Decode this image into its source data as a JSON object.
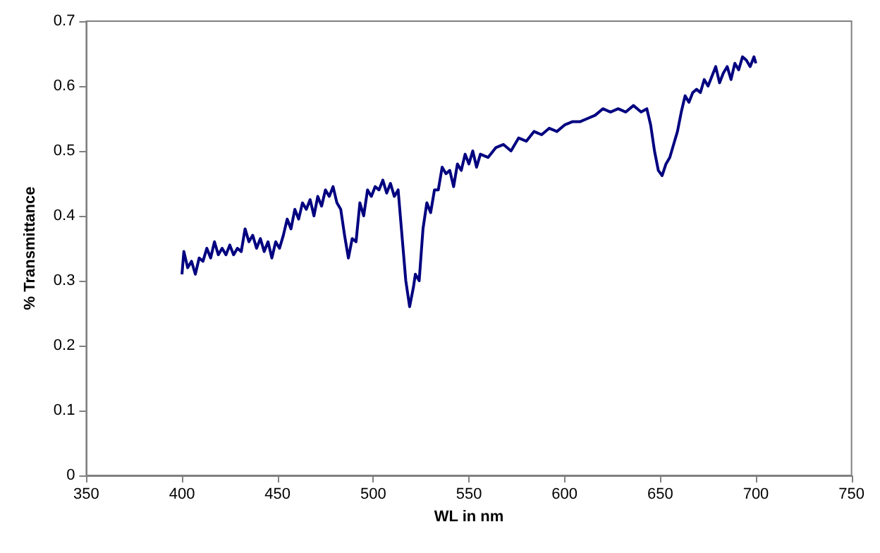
{
  "chart_data": {
    "type": "line",
    "xlabel": "WL in nm",
    "ylabel": "% Transmittance",
    "xlim": [
      350,
      750
    ],
    "xticks": [
      350,
      400,
      450,
      500,
      550,
      600,
      650,
      700,
      750
    ],
    "ylim": [
      0,
      0.7
    ],
    "yticks": [
      0,
      0.1,
      0.2,
      0.3,
      0.4,
      0.5,
      0.6,
      0.7
    ],
    "grid": false,
    "marker": "none",
    "line_style": "solid",
    "series": [
      {
        "color": "#000080",
        "x": [
          400,
          401,
          403,
          405,
          407,
          409,
          411,
          413,
          415,
          417,
          419,
          421,
          423,
          425,
          427,
          429,
          431,
          433,
          435,
          437,
          439,
          441,
          443,
          445,
          447,
          449,
          451,
          453,
          455,
          457,
          459,
          461,
          463,
          465,
          467,
          469,
          471,
          473,
          475,
          477,
          479,
          481,
          483,
          485,
          487,
          489,
          491,
          493,
          495,
          497,
          499,
          501,
          503,
          505,
          507,
          509,
          511,
          513,
          515,
          517,
          519,
          521,
          522,
          524,
          526,
          528,
          530,
          532,
          534,
          536,
          538,
          540,
          542,
          544,
          546,
          548,
          550,
          552,
          554,
          556,
          560,
          564,
          568,
          572,
          576,
          580,
          584,
          588,
          592,
          596,
          600,
          604,
          608,
          612,
          616,
          620,
          624,
          628,
          632,
          636,
          640,
          643,
          645,
          647,
          649,
          651,
          653,
          655,
          657,
          659,
          661,
          663,
          665,
          667,
          669,
          671,
          673,
          675,
          677,
          679,
          681,
          683,
          685,
          687,
          689,
          691,
          693,
          695,
          697,
          699,
          700
        ],
        "values": [
          0.31,
          0.345,
          0.32,
          0.33,
          0.31,
          0.335,
          0.33,
          0.35,
          0.335,
          0.36,
          0.34,
          0.35,
          0.34,
          0.355,
          0.34,
          0.35,
          0.345,
          0.38,
          0.36,
          0.37,
          0.35,
          0.365,
          0.345,
          0.36,
          0.335,
          0.36,
          0.35,
          0.37,
          0.395,
          0.38,
          0.41,
          0.395,
          0.42,
          0.41,
          0.425,
          0.4,
          0.43,
          0.415,
          0.44,
          0.43,
          0.445,
          0.42,
          0.41,
          0.37,
          0.335,
          0.365,
          0.36,
          0.42,
          0.4,
          0.44,
          0.43,
          0.445,
          0.44,
          0.455,
          0.435,
          0.45,
          0.43,
          0.44,
          0.37,
          0.3,
          0.26,
          0.29,
          0.31,
          0.3,
          0.38,
          0.42,
          0.405,
          0.44,
          0.44,
          0.475,
          0.465,
          0.47,
          0.445,
          0.48,
          0.47,
          0.495,
          0.48,
          0.5,
          0.475,
          0.495,
          0.49,
          0.505,
          0.51,
          0.5,
          0.52,
          0.515,
          0.53,
          0.525,
          0.535,
          0.53,
          0.54,
          0.545,
          0.545,
          0.55,
          0.555,
          0.565,
          0.56,
          0.565,
          0.56,
          0.57,
          0.56,
          0.565,
          0.54,
          0.5,
          0.47,
          0.462,
          0.48,
          0.49,
          0.51,
          0.53,
          0.56,
          0.585,
          0.575,
          0.59,
          0.595,
          0.59,
          0.61,
          0.6,
          0.615,
          0.63,
          0.605,
          0.62,
          0.63,
          0.61,
          0.635,
          0.625,
          0.645,
          0.64,
          0.63,
          0.645,
          0.635
        ]
      }
    ]
  }
}
